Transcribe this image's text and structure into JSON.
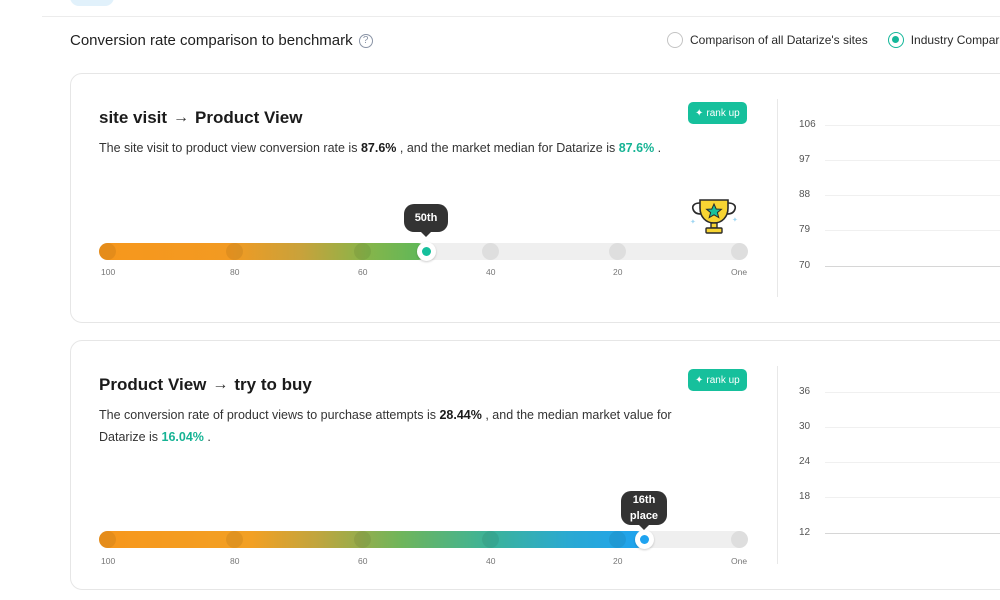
{
  "section": {
    "title": "Conversion rate comparison to benchmark",
    "help_icon": "question-circle-icon"
  },
  "comparison_options": [
    {
      "label": "Comparison of all Datarize's sites",
      "selected": false
    },
    {
      "label": "Industry Comparison",
      "selected": true
    }
  ],
  "colors": {
    "accent": "#16c09c",
    "orange": "#f7971c",
    "blue": "#1fa3f0",
    "tooltip": "#333333"
  },
  "cards": [
    {
      "title_from": "site visit",
      "title_to": "Product View",
      "badge": "rank up",
      "badge_icon": "sparkle-icon",
      "description_prefix": "The site visit to product view conversion rate is",
      "rate": "87.6%",
      "description_middle": ", and the market median for Datarize is",
      "median": "87.6%",
      "description_suffix": ".",
      "rank_label": "50th",
      "rank_percentile": 50,
      "scale_labels": [
        "100",
        "80",
        "60",
        "40",
        "20",
        "One"
      ],
      "has_trophy": true,
      "chart_y_ticks": [
        "106",
        "97",
        "88",
        "79",
        "70"
      ]
    },
    {
      "title_from": "Product View",
      "title_to": "try to buy",
      "badge": "rank up",
      "badge_icon": "sparkle-icon",
      "description_prefix": "The conversion rate of product views to purchase attempts is",
      "rate": "28.44%",
      "description_middle": ", and the median market value for Datarize is",
      "median": "16.04%",
      "description_suffix": ".",
      "rank_label": "16th place",
      "rank_line1": "16th",
      "rank_line2": "place",
      "rank_percentile": 16,
      "scale_labels": [
        "100",
        "80",
        "60",
        "40",
        "20",
        "One"
      ],
      "has_trophy": false,
      "chart_y_ticks": [
        "36",
        "30",
        "24",
        "18",
        "12"
      ]
    }
  ]
}
